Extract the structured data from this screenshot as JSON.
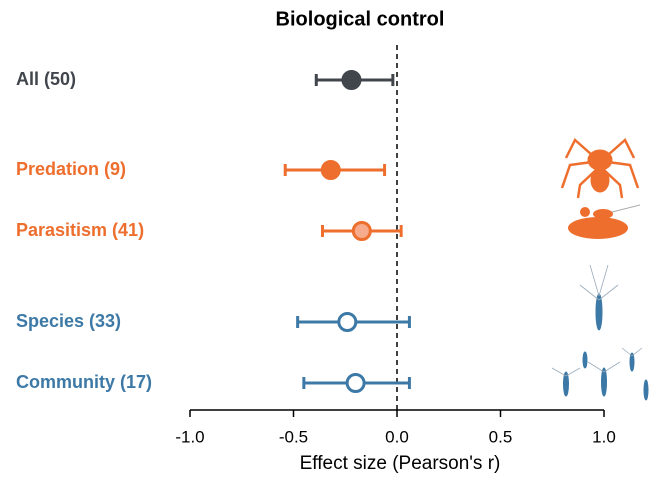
{
  "chart_data": {
    "type": "forest",
    "title": "Biological control",
    "xlabel": "Effect size (Pearson's r)",
    "categories": [
      "All (50)",
      "Predation (9)",
      "Parasitism (41)",
      "Species (33)",
      "Community (17)"
    ],
    "values": [
      -0.22,
      -0.32,
      -0.17,
      -0.24,
      -0.2
    ],
    "lower": [
      -0.39,
      -0.54,
      -0.36,
      -0.48,
      -0.45
    ],
    "upper": [
      -0.02,
      -0.06,
      0.02,
      0.06,
      0.06
    ],
    "colors": [
      "#41464d",
      "#ee6e2d",
      "#ee6e2d",
      "#3d79a6",
      "#3d79a6"
    ],
    "fills": [
      "#41464d",
      "#ee6e2d",
      "#f6ab8c",
      "#ffffff",
      "#ffffff"
    ],
    "xlim": [
      -1,
      1
    ],
    "xticks": [
      {
        "value": -1,
        "label": "-1.0"
      },
      {
        "value": -0.5,
        "label": "-0.5"
      },
      {
        "value": 0,
        "label": "0.0"
      },
      {
        "value": 0.5,
        "label": "0.5"
      },
      {
        "value": 1,
        "label": "1.0"
      }
    ],
    "reference_line": 0
  }
}
